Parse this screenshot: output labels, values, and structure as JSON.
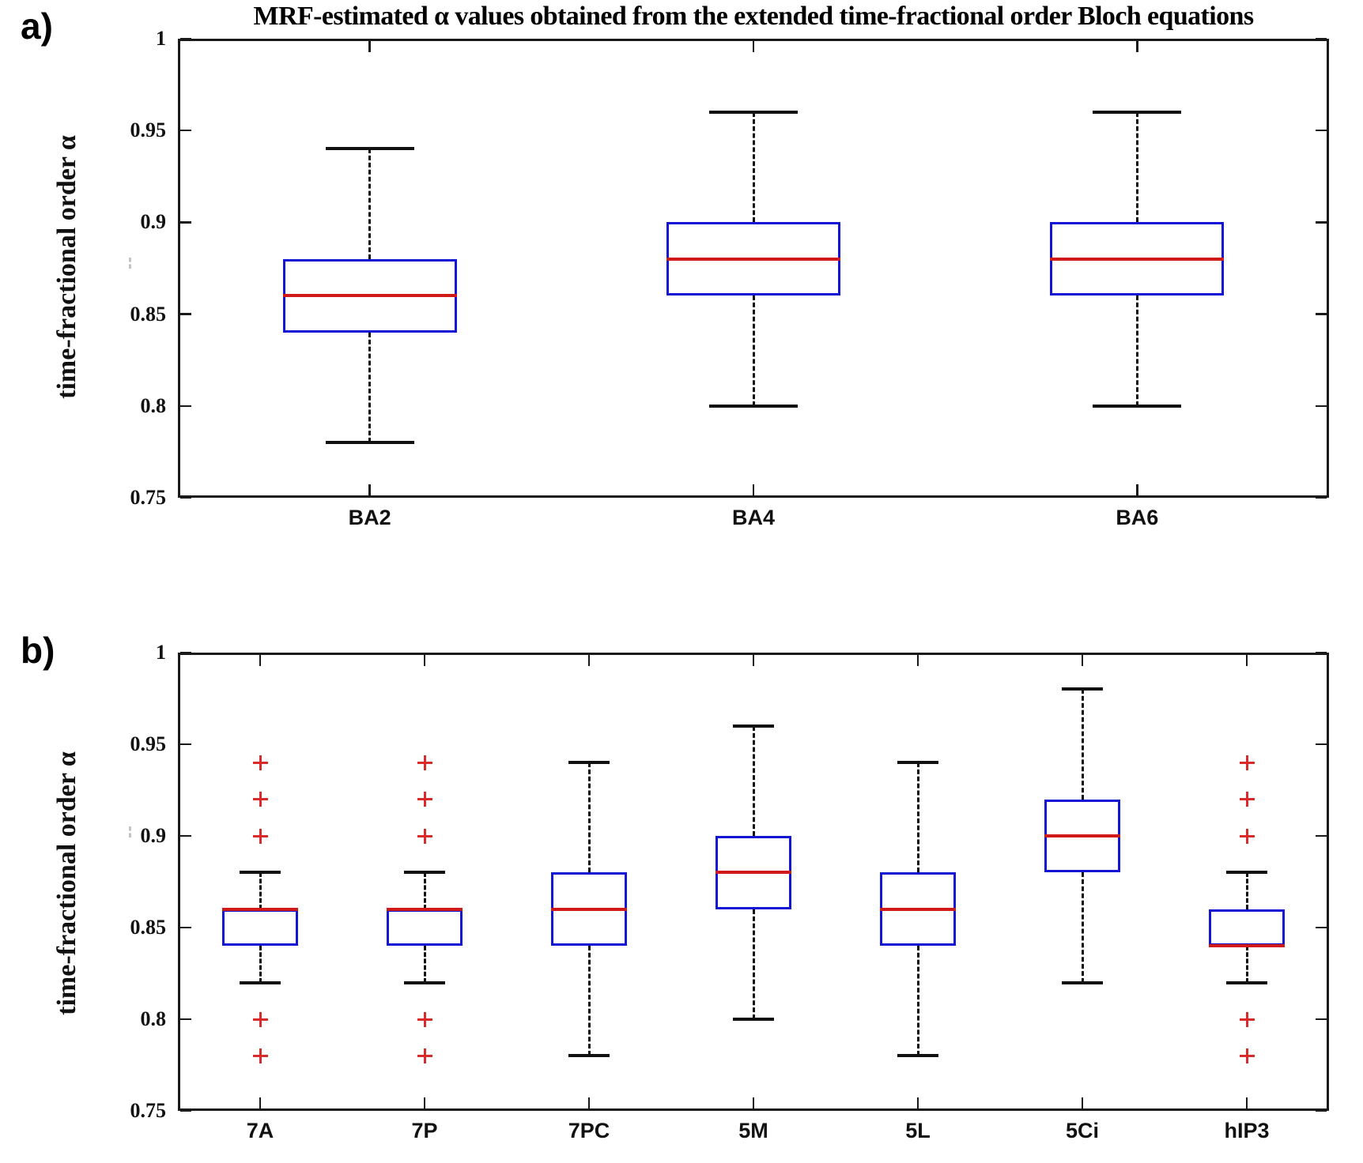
{
  "panels": [
    {
      "id": "a",
      "label": "a)",
      "ylabel": "time-fractional order α"
    },
    {
      "id": "b",
      "label": "b)",
      "ylabel": "time-fractional order α"
    }
  ],
  "colors": {
    "box": "#1414d4",
    "median": "#d01a1a",
    "outlier": "#d92b2b",
    "whisker": "#111111",
    "axis": "#1a1a1a"
  },
  "chart_data": [
    {
      "type": "boxplot",
      "panel": "a",
      "title": "MRF-estimated α values obtained from the extended time-fractional order Bloch equations",
      "ylabel": "time-fractional order α",
      "xlabel": "",
      "ylim": [
        0.75,
        1
      ],
      "grid": false,
      "yticks": [
        {
          "label": "1",
          "value": 1
        },
        {
          "label": "0.95",
          "value": 0.95
        },
        {
          "label": "0.9",
          "value": 0.9
        },
        {
          "label": "0.85",
          "value": 0.85
        },
        {
          "label": "0.8",
          "value": 0.8
        },
        {
          "label": "0.75",
          "value": 0.75
        }
      ],
      "categories": [
        "BA2",
        "BA4",
        "BA6"
      ],
      "boxes": [
        {
          "label": "BA2",
          "whisker_low": 0.78,
          "q1": 0.84,
          "median": 0.86,
          "q3": 0.88,
          "whisker_high": 0.94,
          "outliers": []
        },
        {
          "label": "BA4",
          "whisker_low": 0.8,
          "q1": 0.86,
          "median": 0.88,
          "q3": 0.9,
          "whisker_high": 0.96,
          "outliers": []
        },
        {
          "label": "BA6",
          "whisker_low": 0.8,
          "q1": 0.86,
          "median": 0.88,
          "q3": 0.9,
          "whisker_high": 0.96,
          "outliers": []
        }
      ]
    },
    {
      "type": "boxplot",
      "panel": "b",
      "title": "",
      "ylabel": "time-fractional order α",
      "xlabel": "",
      "ylim": [
        0.75,
        1
      ],
      "grid": false,
      "yticks": [
        {
          "label": "1",
          "value": 1
        },
        {
          "label": "0.95",
          "value": 0.95
        },
        {
          "label": "0.9",
          "value": 0.9
        },
        {
          "label": "0.85",
          "value": 0.85
        },
        {
          "label": "0.8",
          "value": 0.8
        },
        {
          "label": "0.75",
          "value": 0.75
        }
      ],
      "categories": [
        "7A",
        "7P",
        "7PC",
        "5M",
        "5L",
        "5Ci",
        "hIP3"
      ],
      "boxes": [
        {
          "label": "7A",
          "whisker_low": 0.82,
          "q1": 0.84,
          "median": 0.86,
          "q3": 0.86,
          "whisker_high": 0.88,
          "outliers": [
            0.94,
            0.92,
            0.9,
            0.8,
            0.78
          ]
        },
        {
          "label": "7P",
          "whisker_low": 0.82,
          "q1": 0.84,
          "median": 0.86,
          "q3": 0.86,
          "whisker_high": 0.88,
          "outliers": [
            0.94,
            0.92,
            0.9,
            0.8,
            0.78
          ]
        },
        {
          "label": "7PC",
          "whisker_low": 0.78,
          "q1": 0.84,
          "median": 0.86,
          "q3": 0.88,
          "whisker_high": 0.94,
          "outliers": []
        },
        {
          "label": "5M",
          "whisker_low": 0.8,
          "q1": 0.86,
          "median": 0.88,
          "q3": 0.9,
          "whisker_high": 0.96,
          "outliers": []
        },
        {
          "label": "5L",
          "whisker_low": 0.78,
          "q1": 0.84,
          "median": 0.86,
          "q3": 0.88,
          "whisker_high": 0.94,
          "outliers": []
        },
        {
          "label": "5Ci",
          "whisker_low": 0.82,
          "q1": 0.88,
          "median": 0.9,
          "q3": 0.92,
          "whisker_high": 0.98,
          "outliers": []
        },
        {
          "label": "hIP3",
          "whisker_low": 0.82,
          "q1": 0.84,
          "median": 0.84,
          "q3": 0.86,
          "whisker_high": 0.88,
          "outliers": [
            0.94,
            0.92,
            0.9,
            0.8,
            0.78
          ]
        }
      ]
    }
  ]
}
